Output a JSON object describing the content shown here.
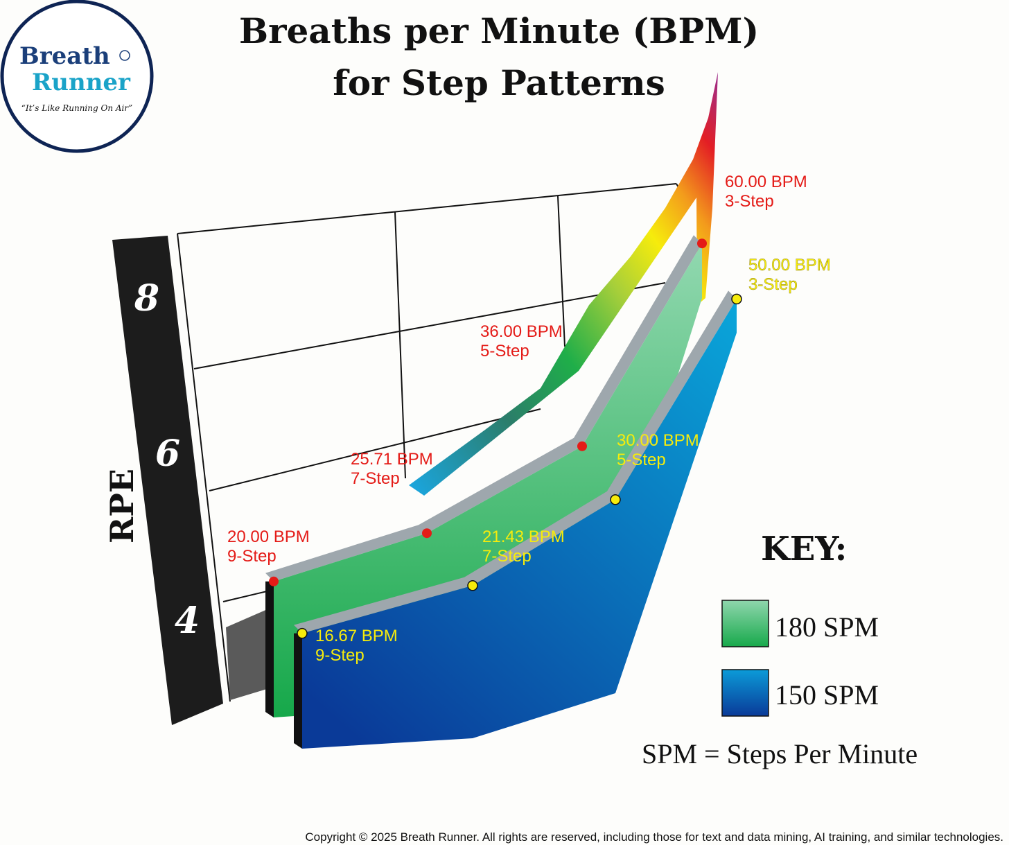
{
  "title": [
    "Breaths per Minute (BPM)",
    "for Step Patterns"
  ],
  "logo": {
    "line1": "Breath",
    "line2": "Runner",
    "slogan": "“It’s Like Running On Air”"
  },
  "key": {
    "title": "KEY:",
    "items": [
      {
        "label": "180 SPM",
        "color": "#2db85c"
      },
      {
        "label": "150 SPM",
        "color": "#0a63c0"
      }
    ],
    "note": "SPM = Steps Per Minute"
  },
  "copyright": "Copyright © 2025 Breath Runner. All rights are reserved, including those for text and data mining, AI training, and similar technologies.",
  "chart_data": {
    "type": "area",
    "ylabel": "RPE",
    "yticks": [
      "4",
      "6",
      "8"
    ],
    "categories": [
      "9-Step",
      "7-Step",
      "5-Step",
      "3-Step"
    ],
    "series": [
      {
        "name": "180 SPM",
        "color": "#2db85c",
        "marker_color": "#e41b17",
        "values": [
          20.0,
          25.71,
          36.0,
          60.0
        ],
        "labels": [
          {
            "bpm": "20.00 BPM",
            "step": "9-Step"
          },
          {
            "bpm": "25.71 BPM",
            "step": "7-Step"
          },
          {
            "bpm": "36.00 BPM",
            "step": "5-Step"
          },
          {
            "bpm": "60.00 BPM",
            "step": "3-Step"
          }
        ]
      },
      {
        "name": "150 SPM",
        "color": "#0a63c0",
        "marker_color": "#f6ec0c",
        "values": [
          16.67,
          21.43,
          30.0,
          50.0
        ],
        "labels": [
          {
            "bpm": "16.67 BPM",
            "step": "9-Step"
          },
          {
            "bpm": "21.43 BPM",
            "step": "7-Step"
          },
          {
            "bpm": "30.00 BPM",
            "step": "5-Step"
          },
          {
            "bpm": "50.00 BPM",
            "step": "3-Step"
          }
        ]
      }
    ]
  }
}
